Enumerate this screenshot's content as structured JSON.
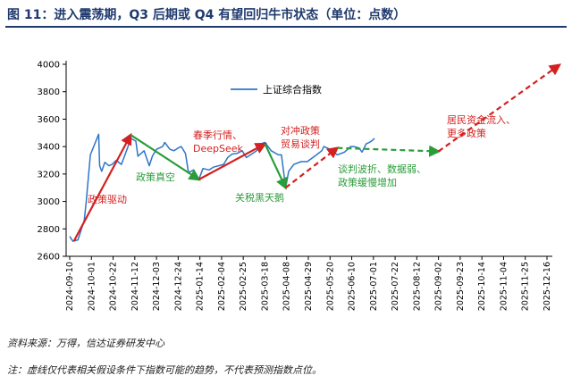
{
  "title": "图 11：进入震荡期，Q3 后期或 Q4 有望回归牛市状态（单位：点数）",
  "source": "资料来源：万得，信达证券研发中心",
  "note": "注：虚线仅代表相关假设条件下指数可能的趋势，不代表预测指数点位。",
  "colors": {
    "line": "#2e75c8",
    "red": "#d42020",
    "green": "#2a9d3a",
    "title": "#1f3a6e"
  },
  "chart_data": {
    "type": "line",
    "ylim": [
      2600,
      4000
    ],
    "yticks": [
      2600,
      2800,
      3000,
      3200,
      3400,
      3600,
      3800,
      4000
    ],
    "xticks": [
      "2024-09-10",
      "2024-10-01",
      "2024-10-22",
      "2024-11-12",
      "2024-12-03",
      "2024-12-24",
      "2025-01-14",
      "2025-02-04",
      "2025-02-25",
      "2025-03-18",
      "2025-04-08",
      "2025-04-29",
      "2025-05-20",
      "2025-06-10",
      "2025-07-01",
      "2025-07-22",
      "2025-08-12",
      "2025-09-02",
      "2025-09-23",
      "2025-10-14",
      "2025-11-04",
      "2025-11-25",
      "2025-12-16"
    ],
    "legend": "上证综合指数",
    "legend_position": "top-left",
    "series": [
      {
        "name": "上证综合指数",
        "points": [
          [
            "2024-09-10",
            2745
          ],
          [
            "2024-09-13",
            2710
          ],
          [
            "2024-09-18",
            2720
          ],
          [
            "2024-09-24",
            2860
          ],
          [
            "2024-09-26",
            3000
          ],
          [
            "2024-09-30",
            3340
          ],
          [
            "2024-10-08",
            3490
          ],
          [
            "2024-10-09",
            3260
          ],
          [
            "2024-10-11",
            3220
          ],
          [
            "2024-10-14",
            3285
          ],
          [
            "2024-10-18",
            3260
          ],
          [
            "2024-10-21",
            3270
          ],
          [
            "2024-10-25",
            3300
          ],
          [
            "2024-10-30",
            3270
          ],
          [
            "2024-11-05",
            3390
          ],
          [
            "2024-11-08",
            3460
          ],
          [
            "2024-11-13",
            3440
          ],
          [
            "2024-11-15",
            3330
          ],
          [
            "2024-11-21",
            3370
          ],
          [
            "2024-11-26",
            3260
          ],
          [
            "2024-11-29",
            3330
          ],
          [
            "2024-12-03",
            3380
          ],
          [
            "2024-12-09",
            3400
          ],
          [
            "2024-12-11",
            3430
          ],
          [
            "2024-12-16",
            3380
          ],
          [
            "2024-12-20",
            3370
          ],
          [
            "2024-12-24",
            3390
          ],
          [
            "2024-12-27",
            3400
          ],
          [
            "2024-12-31",
            3350
          ],
          [
            "2025-01-03",
            3210
          ],
          [
            "2025-01-08",
            3230
          ],
          [
            "2025-01-13",
            3160
          ],
          [
            "2025-01-17",
            3240
          ],
          [
            "2025-01-23",
            3230
          ],
          [
            "2025-01-27",
            3250
          ],
          [
            "2025-02-06",
            3270
          ],
          [
            "2025-02-10",
            3320
          ],
          [
            "2025-02-14",
            3345
          ],
          [
            "2025-02-19",
            3350
          ],
          [
            "2025-02-24",
            3370
          ],
          [
            "2025-02-28",
            3320
          ],
          [
            "2025-03-04",
            3340
          ],
          [
            "2025-03-10",
            3370
          ],
          [
            "2025-03-14",
            3420
          ],
          [
            "2025-03-18",
            3430
          ],
          [
            "2025-03-24",
            3370
          ],
          [
            "2025-03-31",
            3340
          ],
          [
            "2025-04-03",
            3340
          ],
          [
            "2025-04-07",
            3100
          ],
          [
            "2025-04-10",
            3220
          ],
          [
            "2025-04-15",
            3270
          ],
          [
            "2025-04-22",
            3290
          ],
          [
            "2025-04-28",
            3290
          ],
          [
            "2025-05-07",
            3340
          ],
          [
            "2025-05-12",
            3370
          ],
          [
            "2025-05-14",
            3400
          ],
          [
            "2025-05-20",
            3380
          ],
          [
            "2025-05-27",
            3340
          ],
          [
            "2025-06-03",
            3360
          ],
          [
            "2025-06-09",
            3400
          ],
          [
            "2025-06-12",
            3400
          ],
          [
            "2025-06-17",
            3390
          ],
          [
            "2025-06-20",
            3360
          ],
          [
            "2025-06-24",
            3420
          ],
          [
            "2025-06-27",
            3430
          ],
          [
            "2025-06-30",
            3445
          ],
          [
            "2025-07-02",
            3460
          ]
        ]
      }
    ],
    "trend_arrows": [
      {
        "style": "solid",
        "color": "red",
        "from": [
          "2024-09-14",
          2710
        ],
        "to": [
          "2024-11-08",
          3485
        ]
      },
      {
        "style": "solid",
        "color": "green",
        "from": [
          "2024-11-08",
          3485
        ],
        "to": [
          "2025-01-13",
          3160
        ]
      },
      {
        "style": "solid",
        "color": "red",
        "from": [
          "2025-01-13",
          3160
        ],
        "to": [
          "2025-03-18",
          3420
        ]
      },
      {
        "style": "solid",
        "color": "green",
        "from": [
          "2025-03-18",
          3420
        ],
        "to": [
          "2025-04-07",
          3100
        ]
      },
      {
        "style": "dashed",
        "color": "red",
        "from": [
          "2025-04-07",
          3100
        ],
        "to": [
          "2025-05-27",
          3390
        ]
      },
      {
        "style": "dashed",
        "color": "green",
        "from": [
          "2025-05-27",
          3390
        ],
        "to": [
          "2025-09-02",
          3365
        ]
      },
      {
        "style": "dashed",
        "color": "red",
        "from": [
          "2025-09-02",
          3365
        ],
        "to": [
          "2025-12-28",
          3995
        ]
      }
    ],
    "annotations": [
      {
        "lines": [
          "政策驱动"
        ],
        "color": "red"
      },
      {
        "lines": [
          "政策真空"
        ],
        "color": "green"
      },
      {
        "lines": [
          "春季行情、",
          "DeepSeek"
        ],
        "color": "red"
      },
      {
        "lines": [
          "关税黑天鹅"
        ],
        "color": "green"
      },
      {
        "lines": [
          "对冲政策",
          "贸易谈判"
        ],
        "color": "red"
      },
      {
        "lines": [
          "谈判波折、数据弱、",
          "政策缓慢增加"
        ],
        "color": "green"
      },
      {
        "lines": [
          "居民资金流入、",
          "更多政策"
        ],
        "color": "red"
      }
    ]
  }
}
